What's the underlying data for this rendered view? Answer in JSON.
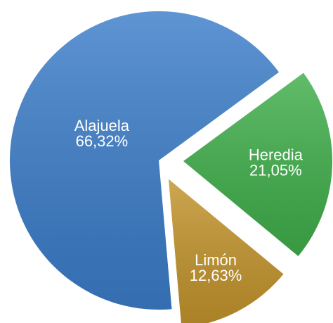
{
  "chart_data": {
    "type": "pie",
    "categories": [
      "Alajuela",
      "Heredia",
      "Limón"
    ],
    "values": [
      66.32,
      21.05,
      12.63
    ],
    "value_labels": [
      "66,32%",
      "21,05%",
      "12,63%"
    ],
    "colors": [
      "#3b7dc9",
      "#3fae4a",
      "#c2932b"
    ]
  }
}
